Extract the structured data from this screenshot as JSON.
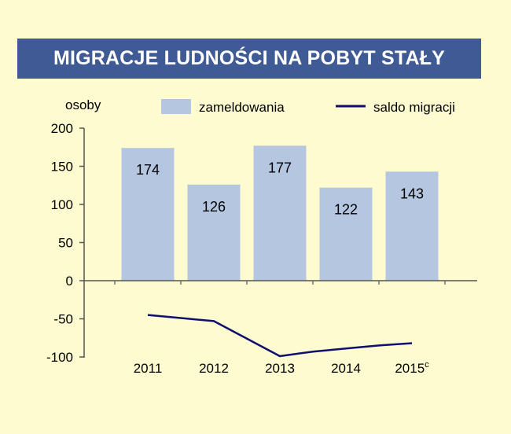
{
  "chart_data": {
    "type": "bar",
    "title": "MIGRACJE LUDNOŚCI NA POBYT STAŁY",
    "ylabel": "osoby",
    "ylim": [
      -100,
      200
    ],
    "yticks": [
      "200",
      "150",
      "100",
      "50",
      "0",
      "-50",
      "-100"
    ],
    "yticks_values": [
      200,
      150,
      100,
      50,
      0,
      -50,
      -100
    ],
    "categories": [
      "2011",
      "2012",
      "2013",
      "2014",
      "2015"
    ],
    "category_superscripts": [
      "",
      "",
      "",
      "",
      "c"
    ],
    "legend_position": "top",
    "grid": false,
    "series": [
      {
        "name": "zameldowania",
        "type": "bar",
        "color": "#b4c6e0",
        "values": [
          174,
          126,
          177,
          122,
          143
        ],
        "labels": [
          "174",
          "126",
          "177",
          "122",
          "143"
        ]
      },
      {
        "name": "saldo migracji",
        "type": "line",
        "color": "#0e0f6e",
        "points": [
          {
            "x": "2011",
            "y": -45
          },
          {
            "x": "2011.5",
            "y": -49
          },
          {
            "x": "2012",
            "y": -53
          },
          {
            "x": "2013",
            "y": -99
          },
          {
            "x": "2013.5",
            "y": -93
          },
          {
            "x": "2014",
            "y": -89
          },
          {
            "x": "2014.5",
            "y": -85
          },
          {
            "x": "2015",
            "y": -82
          }
        ]
      }
    ]
  }
}
